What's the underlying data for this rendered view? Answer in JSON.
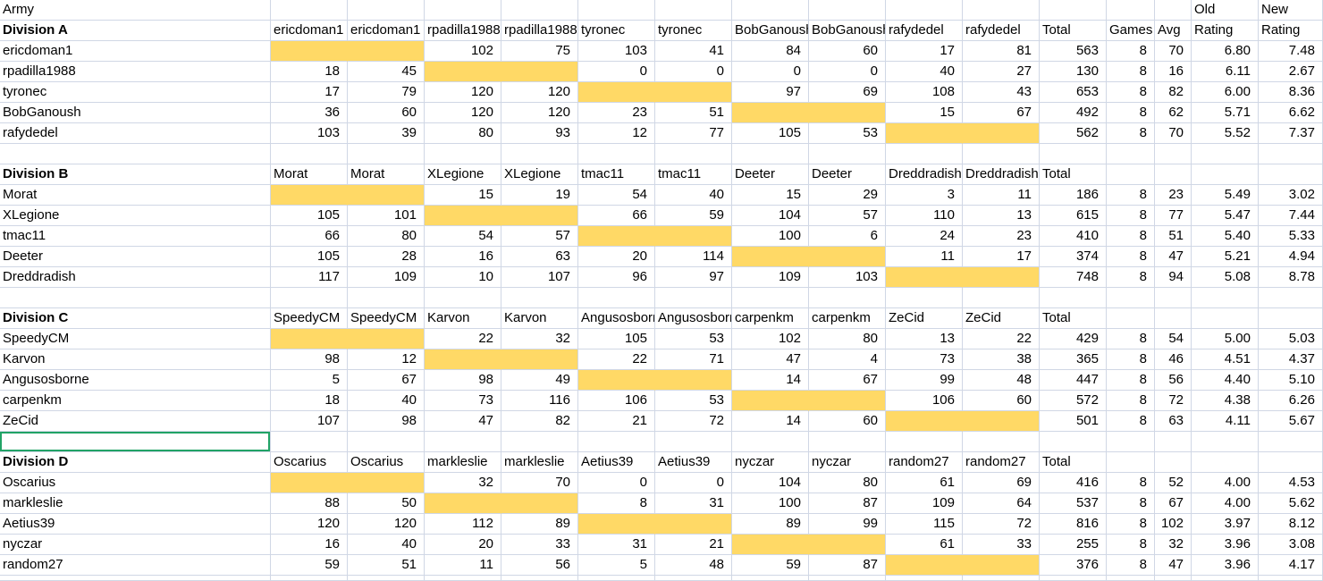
{
  "sheet": {
    "corner_cell": "Army",
    "rating_header": {
      "old_top": "Old",
      "old_bottom": "Rating",
      "new_top": "New",
      "new_bottom": "Rating"
    },
    "column_headers": {
      "total": "Total",
      "games": "Games",
      "avg": "Avg"
    },
    "colors": {
      "highlight": "#FFD966",
      "gridline": "#D0D7E5",
      "selection": "#21A366"
    },
    "divisions": [
      {
        "name": "Division A",
        "players": [
          "ericdoman1",
          "rpadilla1988",
          "tyronec",
          "BobGanoush",
          "rafydedel"
        ],
        "rows": [
          {
            "player": "ericdoman1",
            "scores": [
              null,
              null,
              102,
              75,
              103,
              41,
              84,
              60,
              17,
              81
            ],
            "total": 563,
            "games": 8,
            "avg": 70,
            "old_rating": "6.80",
            "new_rating": "7.48"
          },
          {
            "player": "rpadilla1988",
            "scores": [
              18,
              45,
              null,
              null,
              0,
              0,
              0,
              0,
              40,
              27
            ],
            "total": 130,
            "games": 8,
            "avg": 16,
            "old_rating": "6.11",
            "new_rating": "2.67"
          },
          {
            "player": "tyronec",
            "scores": [
              17,
              79,
              120,
              120,
              null,
              null,
              97,
              69,
              108,
              43
            ],
            "total": 653,
            "games": 8,
            "avg": 82,
            "old_rating": "6.00",
            "new_rating": "8.36"
          },
          {
            "player": "BobGanoush",
            "scores": [
              36,
              60,
              120,
              120,
              23,
              51,
              null,
              null,
              15,
              67
            ],
            "total": 492,
            "games": 8,
            "avg": 62,
            "old_rating": "5.71",
            "new_rating": "6.62"
          },
          {
            "player": "rafydedel",
            "scores": [
              103,
              39,
              80,
              93,
              12,
              77,
              105,
              53,
              null,
              null
            ],
            "total": 562,
            "games": 8,
            "avg": 70,
            "old_rating": "5.52",
            "new_rating": "7.37"
          }
        ]
      },
      {
        "name": "Division B",
        "players": [
          "Morat",
          "XLegione",
          "tmac11",
          "Deeter",
          "Dreddradish"
        ],
        "rows": [
          {
            "player": "Morat",
            "scores": [
              null,
              null,
              15,
              19,
              54,
              40,
              15,
              29,
              3,
              11
            ],
            "total": 186,
            "games": 8,
            "avg": 23,
            "old_rating": "5.49",
            "new_rating": "3.02"
          },
          {
            "player": "XLegione",
            "scores": [
              105,
              101,
              null,
              null,
              66,
              59,
              104,
              57,
              110,
              13
            ],
            "total": 615,
            "games": 8,
            "avg": 77,
            "old_rating": "5.47",
            "new_rating": "7.44"
          },
          {
            "player": "tmac11",
            "scores": [
              66,
              80,
              54,
              57,
              null,
              null,
              100,
              6,
              24,
              23
            ],
            "total": 410,
            "games": 8,
            "avg": 51,
            "old_rating": "5.40",
            "new_rating": "5.33"
          },
          {
            "player": "Deeter",
            "scores": [
              105,
              28,
              16,
              63,
              20,
              114,
              null,
              null,
              11,
              17
            ],
            "total": 374,
            "games": 8,
            "avg": 47,
            "old_rating": "5.21",
            "new_rating": "4.94"
          },
          {
            "player": "Dreddradish",
            "scores": [
              117,
              109,
              10,
              107,
              96,
              97,
              109,
              103,
              null,
              null
            ],
            "total": 748,
            "games": 8,
            "avg": 94,
            "old_rating": "5.08",
            "new_rating": "8.78"
          }
        ]
      },
      {
        "name": "Division C",
        "players": [
          "SpeedyCM",
          "Karvon",
          "Angusosborne",
          "carpenkm",
          "ZeCid"
        ],
        "rows": [
          {
            "player": "SpeedyCM",
            "scores": [
              null,
              null,
              22,
              32,
              105,
              53,
              102,
              80,
              13,
              22
            ],
            "total": 429,
            "games": 8,
            "avg": 54,
            "old_rating": "5.00",
            "new_rating": "5.03"
          },
          {
            "player": "Karvon",
            "scores": [
              98,
              12,
              null,
              null,
              22,
              71,
              47,
              4,
              73,
              38
            ],
            "total": 365,
            "games": 8,
            "avg": 46,
            "old_rating": "4.51",
            "new_rating": "4.37"
          },
          {
            "player": "Angusosborne",
            "scores": [
              5,
              67,
              98,
              49,
              null,
              null,
              14,
              67,
              99,
              48
            ],
            "total": 447,
            "games": 8,
            "avg": 56,
            "old_rating": "4.40",
            "new_rating": "5.10"
          },
          {
            "player": "carpenkm",
            "scores": [
              18,
              40,
              73,
              116,
              106,
              53,
              null,
              null,
              106,
              60
            ],
            "total": 572,
            "games": 8,
            "avg": 72,
            "old_rating": "4.38",
            "new_rating": "6.26"
          },
          {
            "player": "ZeCid",
            "scores": [
              107,
              98,
              47,
              82,
              21,
              72,
              14,
              60,
              null,
              null
            ],
            "total": 501,
            "games": 8,
            "avg": 63,
            "old_rating": "4.11",
            "new_rating": "5.67"
          }
        ]
      },
      {
        "name": "Division D",
        "players": [
          "Oscarius",
          "markleslie",
          "Aetius39",
          "nyczar",
          "random27"
        ],
        "rows": [
          {
            "player": "Oscarius",
            "scores": [
              null,
              null,
              32,
              70,
              0,
              0,
              104,
              80,
              61,
              69
            ],
            "total": 416,
            "games": 8,
            "avg": 52,
            "old_rating": "4.00",
            "new_rating": "4.53"
          },
          {
            "player": "markleslie",
            "scores": [
              88,
              50,
              null,
              null,
              8,
              31,
              100,
              87,
              109,
              64
            ],
            "total": 537,
            "games": 8,
            "avg": 67,
            "old_rating": "4.00",
            "new_rating": "5.62"
          },
          {
            "player": "Aetius39",
            "scores": [
              120,
              120,
              112,
              89,
              null,
              null,
              89,
              99,
              115,
              72
            ],
            "total": 816,
            "games": 8,
            "avg": 102,
            "old_rating": "3.97",
            "new_rating": "8.12"
          },
          {
            "player": "nyczar",
            "scores": [
              16,
              40,
              20,
              33,
              31,
              21,
              null,
              null,
              61,
              33
            ],
            "total": 255,
            "games": 8,
            "avg": 32,
            "old_rating": "3.96",
            "new_rating": "3.08"
          },
          {
            "player": "random27",
            "scores": [
              59,
              51,
              11,
              56,
              5,
              48,
              59,
              87,
              null,
              null
            ],
            "total": 376,
            "games": 8,
            "avg": 47,
            "old_rating": "3.96",
            "new_rating": "4.17"
          }
        ]
      }
    ]
  }
}
